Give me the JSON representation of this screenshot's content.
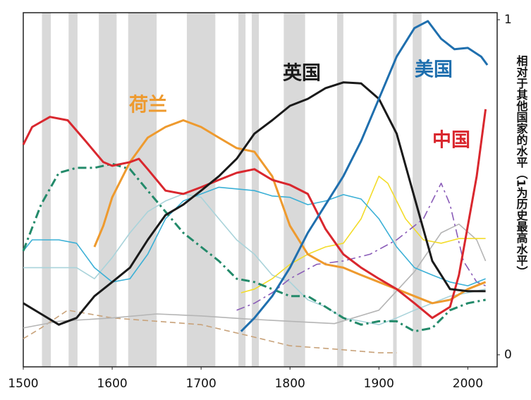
{
  "chart_data": {
    "type": "line",
    "y_axis_label": "相对于其他国家的水平（1为历史最高水平）",
    "xlim": [
      1500,
      2033
    ],
    "ylim": [
      -0.036,
      1.021
    ],
    "xticks": [
      1500,
      1600,
      1700,
      1800,
      1900,
      2000
    ],
    "yticks": [
      0,
      1
    ],
    "grid": false,
    "shaded_periods": [
      [
        1521,
        1531
      ],
      [
        1551,
        1561
      ],
      [
        1585,
        1605
      ],
      [
        1618,
        1650
      ],
      [
        1684,
        1716
      ],
      [
        1742,
        1750
      ],
      [
        1757,
        1765
      ],
      [
        1793,
        1817
      ],
      [
        1853,
        1860
      ],
      [
        1916,
        1920
      ],
      [
        1938,
        1948
      ]
    ],
    "shade_color": "#d9d9d9",
    "series": [
      {
        "color": "#c8a27a",
        "dash": "dashed",
        "x": [
          1500,
          1520,
          1550,
          1600,
          1650,
          1700,
          1750,
          1800,
          1850,
          1900,
          1920
        ],
        "values": [
          0.048,
          0.08,
          0.133,
          0.11,
          0.1,
          0.09,
          0.059,
          0.027,
          0.017,
          0.006,
          0.006
        ]
      },
      {
        "color": "#b5b5b5",
        "x": [
          1500,
          1540,
          1600,
          1650,
          1700,
          1750,
          1800,
          1850,
          1900,
          1940,
          1970,
          1990,
          2010,
          2020
        ],
        "values": [
          0.08,
          0.1,
          0.11,
          0.122,
          0.116,
          0.107,
          0.1,
          0.093,
          0.133,
          0.248,
          0.364,
          0.39,
          0.343,
          0.28
        ]
      },
      {
        "color": "#a9d3da",
        "x": [
          1500,
          1520,
          1560,
          1580,
          1600,
          1620,
          1640,
          1660,
          1680,
          1700,
          1720,
          1740,
          1760,
          1780,
          1800,
          1820,
          1840,
          1860,
          1880,
          1900,
          1920,
          1940,
          1960,
          1980,
          2000,
          2020
        ],
        "values": [
          0.26,
          0.26,
          0.26,
          0.227,
          0.29,
          0.364,
          0.427,
          0.459,
          0.48,
          0.47,
          0.406,
          0.343,
          0.3,
          0.238,
          0.217,
          0.164,
          0.143,
          0.11,
          0.1,
          0.09,
          0.11,
          0.133,
          0.154,
          0.175,
          0.185,
          0.196
        ]
      },
      {
        "color": "#f3dc2a",
        "x": [
          1745,
          1760,
          1780,
          1800,
          1820,
          1840,
          1860,
          1880,
          1900,
          1910,
          1930,
          1950,
          1970,
          1990,
          2020
        ],
        "values": [
          0.185,
          0.196,
          0.227,
          0.27,
          0.3,
          0.322,
          0.333,
          0.406,
          0.533,
          0.512,
          0.406,
          0.343,
          0.333,
          0.347,
          0.347
        ]
      },
      {
        "color": "#8a5cb8",
        "dash": "dashdot",
        "x": [
          1740,
          1760,
          1780,
          1800,
          1830,
          1860,
          1890,
          1920,
          1950,
          1970,
          1980,
          1995,
          2010,
          2020
        ],
        "values": [
          0.133,
          0.154,
          0.185,
          0.227,
          0.27,
          0.28,
          0.3,
          0.343,
          0.406,
          0.512,
          0.448,
          0.28,
          0.217,
          0.206
        ]
      },
      {
        "color": "#3bb0d6",
        "x": [
          1500,
          1510,
          1540,
          1560,
          1580,
          1600,
          1620,
          1640,
          1660,
          1680,
          1700,
          1720,
          1740,
          1760,
          1780,
          1800,
          1820,
          1840,
          1860,
          1880,
          1900,
          1920,
          1940,
          1960,
          1980,
          2000,
          2020
        ],
        "values": [
          0.31,
          0.343,
          0.343,
          0.333,
          0.26,
          0.217,
          0.227,
          0.3,
          0.406,
          0.459,
          0.48,
          0.5,
          0.495,
          0.49,
          0.474,
          0.47,
          0.448,
          0.459,
          0.478,
          0.465,
          0.406,
          0.322,
          0.26,
          0.238,
          0.217,
          0.206,
          0.227
        ]
      },
      {
        "color": "#238a6a",
        "dash": "dashdot",
        "x": [
          1500,
          1520,
          1540,
          1560,
          1580,
          1600,
          1620,
          1640,
          1660,
          1680,
          1700,
          1720,
          1740,
          1760,
          1780,
          1800,
          1820,
          1840,
          1860,
          1880,
          1900,
          1920,
          1940,
          1960,
          1980,
          2000,
          2020
        ],
        "values": [
          0.31,
          0.448,
          0.543,
          0.558,
          0.558,
          0.57,
          0.554,
          0.49,
          0.427,
          0.364,
          0.322,
          0.28,
          0.227,
          0.217,
          0.196,
          0.175,
          0.175,
          0.143,
          0.11,
          0.09,
          0.1,
          0.1,
          0.07,
          0.08,
          0.133,
          0.154,
          0.164
        ]
      },
      {
        "name": "荷兰",
        "color": "#ee9a2e",
        "x": [
          1580,
          1590,
          1600,
          1620,
          1640,
          1660,
          1680,
          1700,
          1720,
          1740,
          1760,
          1780,
          1800,
          1820,
          1840,
          1860,
          1880,
          1900,
          1920,
          1940,
          1960,
          1980,
          2000,
          2020
        ],
        "values": [
          0.322,
          0.385,
          0.47,
          0.575,
          0.648,
          0.68,
          0.7,
          0.68,
          0.648,
          0.617,
          0.606,
          0.533,
          0.385,
          0.3,
          0.27,
          0.26,
          0.238,
          0.217,
          0.196,
          0.175,
          0.154,
          0.164,
          0.196,
          0.217
        ]
      },
      {
        "name": "中国",
        "color": "#d9272e",
        "x": [
          1500,
          1510,
          1530,
          1550,
          1570,
          1590,
          1600,
          1620,
          1630,
          1640,
          1660,
          1680,
          1700,
          1720,
          1740,
          1760,
          1780,
          1800,
          1820,
          1840,
          1860,
          1880,
          1900,
          1920,
          1940,
          1960,
          1980,
          1990,
          2000,
          2010,
          2020
        ],
        "values": [
          0.627,
          0.68,
          0.71,
          0.7,
          0.638,
          0.575,
          0.564,
          0.575,
          0.585,
          0.554,
          0.49,
          0.48,
          0.5,
          0.522,
          0.543,
          0.554,
          0.522,
          0.507,
          0.48,
          0.375,
          0.3,
          0.26,
          0.227,
          0.196,
          0.154,
          0.11,
          0.143,
          0.238,
          0.385,
          0.533,
          0.733
        ]
      },
      {
        "name": "英国",
        "color": "#1a1a1a",
        "x": [
          1500,
          1520,
          1540,
          1560,
          1580,
          1600,
          1620,
          1640,
          1660,
          1680,
          1700,
          1720,
          1740,
          1760,
          1780,
          1800,
          1820,
          1840,
          1860,
          1880,
          1900,
          1920,
          1940,
          1960,
          1980,
          2000,
          2020
        ],
        "values": [
          0.154,
          0.122,
          0.09,
          0.11,
          0.175,
          0.217,
          0.26,
          0.343,
          0.417,
          0.448,
          0.49,
          0.533,
          0.585,
          0.66,
          0.7,
          0.743,
          0.764,
          0.796,
          0.813,
          0.81,
          0.764,
          0.66,
          0.47,
          0.28,
          0.196,
          0.19,
          0.19
        ]
      },
      {
        "name": "美国",
        "color": "#1f6fae",
        "x": [
          1745,
          1760,
          1780,
          1800,
          1820,
          1840,
          1860,
          1880,
          1900,
          1920,
          1940,
          1955,
          1970,
          1985,
          2000,
          2015,
          2022
        ],
        "values": [
          0.07,
          0.11,
          0.175,
          0.26,
          0.364,
          0.448,
          0.533,
          0.638,
          0.764,
          0.89,
          0.975,
          0.996,
          0.943,
          0.912,
          0.916,
          0.89,
          0.865
        ]
      }
    ]
  }
}
